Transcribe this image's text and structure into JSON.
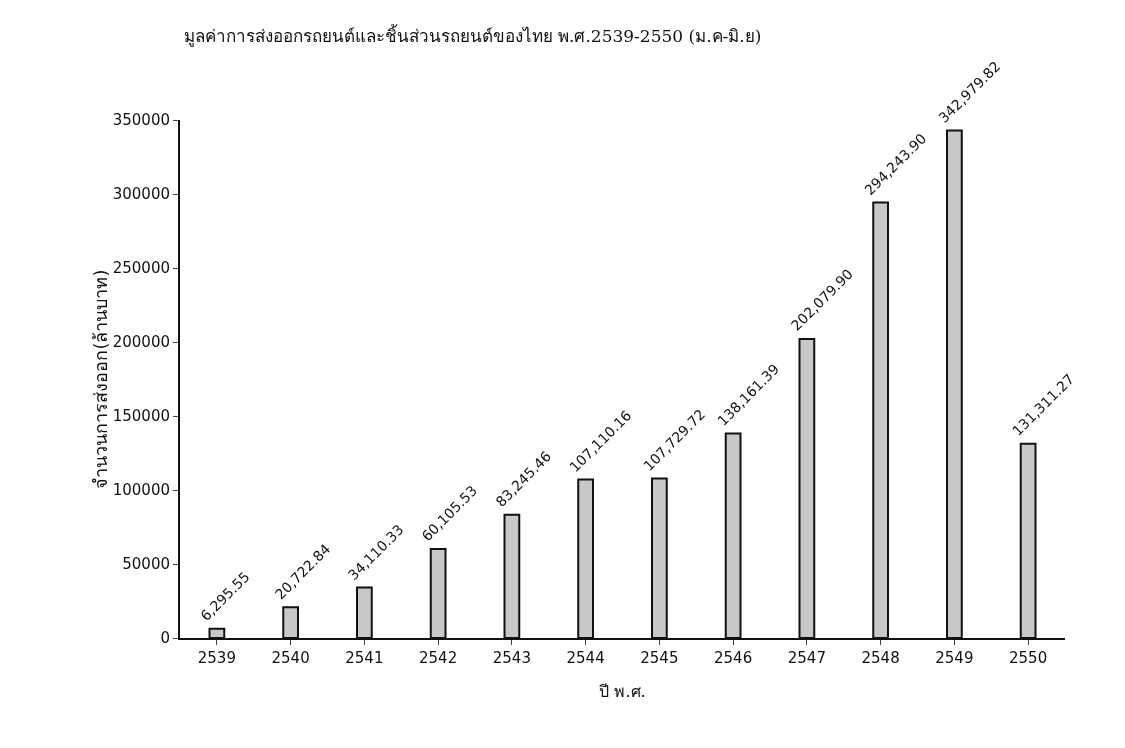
{
  "chart_data": {
    "type": "bar",
    "title": "มูลค่าการส่งออกรถยนต์และชิ้นส่วนรถยนต์ของไทย พ.ศ.2539-2550 (ม.ค-มิ.ย)",
    "xlabel": "ปี พ.ศ.",
    "ylabel": "จำนวนการส่งออก(ล้านบาท)",
    "categories": [
      "2539",
      "2540",
      "2541",
      "2542",
      "2543",
      "2544",
      "2545",
      "2546",
      "2547",
      "2548",
      "2549",
      "2550"
    ],
    "values": [
      6295.55,
      20722.84,
      34110.33,
      60105.53,
      83245.46,
      107110.16,
      107729.72,
      138161.39,
      202079.9,
      294243.9,
      342979.82,
      131311.27
    ],
    "value_labels": [
      "6,295.55",
      "20,722.84",
      "34,110.33",
      "60,105.53",
      "83,245.46",
      "107,110.16",
      "107,729.72",
      "138,161.39",
      "202,079.90",
      "294,243.90",
      "342,979.82",
      "131,311.27"
    ],
    "color": "#c8c8c8",
    "ylim": [
      0,
      350000
    ],
    "yticks": [
      0,
      50000,
      100000,
      150000,
      200000,
      250000,
      300000,
      350000
    ],
    "grid": false,
    "legend": false
  }
}
